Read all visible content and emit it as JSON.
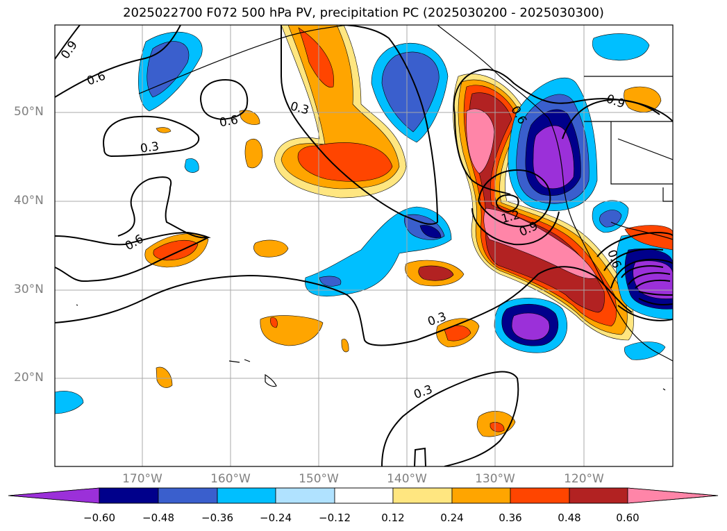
{
  "title": "2025022700 F072 500 hPa PV, precipitation PC (2025030200 - 2025030300)",
  "lat_labels": [
    "50°N",
    "40°N",
    "30°N",
    "20°N"
  ],
  "lon_labels": [
    "170°W",
    "160°W",
    "150°W",
    "140°W",
    "130°W",
    "120°W"
  ],
  "contour_labels": [
    "0.9",
    "0.6",
    "0.6",
    "0.3",
    "0.3",
    "0.6",
    "0.3",
    "0.3",
    "1.2",
    "0.9",
    "0.6",
    "0.6",
    "0.9"
  ],
  "colorbar": {
    "ticks": [
      "−0.60",
      "−0.48",
      "−0.36",
      "−0.24",
      "−0.12",
      "0.12",
      "0.24",
      "0.36",
      "0.48",
      "0.60"
    ],
    "colors": [
      "#9b30d9",
      "#00008b",
      "#3a5fcd",
      "#00bfff",
      "#b0e2ff",
      "#ffffff",
      "#ffe680",
      "#ffa500",
      "#ff4500",
      "#b22222",
      "#ff85a8"
    ]
  }
}
